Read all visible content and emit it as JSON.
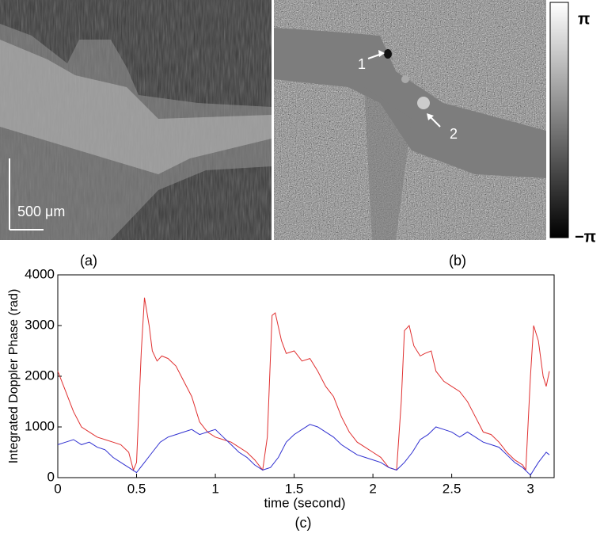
{
  "panels": {
    "a": {
      "label": "(a)",
      "scale_bar": "500 μm"
    },
    "b": {
      "label": "(b)",
      "markers": [
        "1",
        "2"
      ],
      "colorbar": {
        "max": "π",
        "min": "−π"
      }
    }
  },
  "chart_data": {
    "type": "line",
    "caption": "(c)",
    "xlabel": "time (second)",
    "ylabel": "Integrated Doppler Phase (rad)",
    "xlim": [
      0,
      3.15
    ],
    "ylim": [
      0,
      4000
    ],
    "xticks": [
      0,
      0.5,
      1,
      1.5,
      2,
      2.5,
      3
    ],
    "yticks": [
      0,
      1000,
      2000,
      3000,
      4000
    ],
    "series": [
      {
        "name": "red",
        "color": "#e03030",
        "x": [
          0,
          0.05,
          0.1,
          0.15,
          0.2,
          0.25,
          0.3,
          0.35,
          0.4,
          0.45,
          0.48,
          0.5,
          0.53,
          0.55,
          0.58,
          0.6,
          0.63,
          0.66,
          0.7,
          0.75,
          0.8,
          0.85,
          0.9,
          0.95,
          1.0,
          1.05,
          1.1,
          1.15,
          1.2,
          1.25,
          1.3,
          1.33,
          1.36,
          1.38,
          1.42,
          1.45,
          1.5,
          1.55,
          1.6,
          1.65,
          1.7,
          1.75,
          1.8,
          1.85,
          1.9,
          1.95,
          2.0,
          2.05,
          2.1,
          2.15,
          2.18,
          2.2,
          2.23,
          2.26,
          2.3,
          2.33,
          2.37,
          2.4,
          2.45,
          2.5,
          2.55,
          2.6,
          2.65,
          2.7,
          2.75,
          2.8,
          2.85,
          2.9,
          2.95,
          2.97,
          3.0,
          3.02,
          3.05,
          3.08,
          3.1,
          3.12
        ],
        "values": [
          2100,
          1700,
          1300,
          1000,
          900,
          800,
          750,
          700,
          650,
          500,
          150,
          300,
          2500,
          3550,
          3000,
          2500,
          2300,
          2400,
          2350,
          2200,
          1900,
          1600,
          1100,
          900,
          800,
          750,
          700,
          600,
          500,
          350,
          150,
          800,
          3200,
          3250,
          2700,
          2450,
          2500,
          2300,
          2350,
          2100,
          1800,
          1600,
          1200,
          900,
          700,
          600,
          500,
          400,
          200,
          150,
          1500,
          2900,
          3000,
          2600,
          2400,
          2450,
          2500,
          2100,
          1900,
          1800,
          1700,
          1500,
          1200,
          900,
          850,
          700,
          500,
          350,
          250,
          150,
          2000,
          3000,
          2700,
          2000,
          1800,
          2100
        ]
      },
      {
        "name": "blue",
        "color": "#3030d0",
        "x": [
          0,
          0.05,
          0.1,
          0.15,
          0.2,
          0.25,
          0.3,
          0.35,
          0.4,
          0.45,
          0.5,
          0.55,
          0.6,
          0.65,
          0.7,
          0.75,
          0.8,
          0.85,
          0.9,
          0.95,
          1.0,
          1.05,
          1.1,
          1.15,
          1.2,
          1.25,
          1.3,
          1.35,
          1.4,
          1.45,
          1.5,
          1.55,
          1.6,
          1.65,
          1.7,
          1.75,
          1.8,
          1.85,
          1.9,
          1.95,
          2.0,
          2.05,
          2.1,
          2.15,
          2.2,
          2.25,
          2.3,
          2.35,
          2.4,
          2.45,
          2.5,
          2.55,
          2.6,
          2.65,
          2.7,
          2.75,
          2.8,
          2.85,
          2.9,
          2.95,
          3.0,
          3.05,
          3.1,
          3.12
        ],
        "values": [
          650,
          700,
          750,
          650,
          700,
          600,
          550,
          400,
          300,
          200,
          100,
          300,
          500,
          700,
          800,
          850,
          900,
          950,
          850,
          900,
          950,
          800,
          650,
          500,
          400,
          250,
          150,
          200,
          400,
          700,
          850,
          950,
          1050,
          1000,
          900,
          800,
          650,
          550,
          450,
          400,
          350,
          300,
          200,
          150,
          300,
          500,
          750,
          850,
          1000,
          950,
          900,
          800,
          900,
          800,
          700,
          650,
          600,
          450,
          300,
          200,
          50,
          300,
          500,
          450
        ]
      }
    ]
  }
}
